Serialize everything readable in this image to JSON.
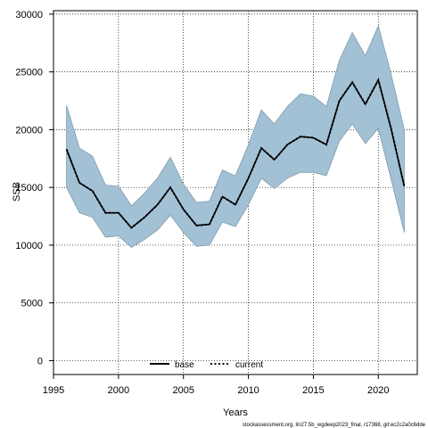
{
  "chart_data": {
    "type": "area",
    "xlabel": "Years",
    "ylabel": "SSB",
    "xlim": [
      1995,
      2023
    ],
    "ylim": [
      -1200,
      30300
    ],
    "x_ticks": [
      1995,
      2000,
      2005,
      2010,
      2015,
      2020
    ],
    "y_ticks": [
      0,
      5000,
      10000,
      15000,
      20000,
      25000,
      30000
    ],
    "grid": true,
    "legend_placement": "bottom-center",
    "x": [
      1996,
      1997,
      1998,
      1999,
      2000,
      2001,
      2002,
      2003,
      2004,
      2005,
      2006,
      2007,
      2008,
      2009,
      2010,
      2011,
      2012,
      2013,
      2014,
      2015,
      2016,
      2017,
      2018,
      2019,
      2020,
      2021,
      2022
    ],
    "series": [
      {
        "name": "current",
        "style": "dotted",
        "color": "#000000",
        "values": [
          18300,
          15400,
          14700,
          12800,
          12800,
          11500,
          12400,
          13500,
          15000,
          13100,
          11700,
          11800,
          14200,
          13500,
          15800,
          18400,
          17400,
          18700,
          19400,
          19300,
          18700,
          22500,
          24100,
          22200,
          24300,
          20000,
          15100
        ]
      },
      {
        "name": "base",
        "style": "solid",
        "color": "#000000",
        "values": [
          18300,
          15400,
          14700,
          12800,
          12800,
          11500,
          12400,
          13500,
          15000,
          13100,
          11700,
          11800,
          14200,
          13500,
          15800,
          18400,
          17400,
          18700,
          19400,
          19300,
          18700,
          22500,
          24100,
          22200,
          24300,
          20000,
          15100
        ]
      }
    ],
    "confidence_band": {
      "upper": [
        22100,
        18400,
        17700,
        15200,
        15100,
        13400,
        14500,
        15800,
        17600,
        15300,
        13700,
        13800,
        16500,
        16000,
        18700,
        21700,
        20500,
        22000,
        23100,
        22900,
        22000,
        26000,
        28400,
        26400,
        29000,
        24700,
        20000
      ],
      "lower": [
        15000,
        12800,
        12400,
        10700,
        10800,
        9800,
        10500,
        11300,
        12600,
        11100,
        9900,
        10000,
        12000,
        11600,
        13500,
        15800,
        14900,
        15800,
        16300,
        16300,
        16000,
        19000,
        20500,
        18800,
        20100,
        15600,
        11100
      ],
      "fill_color": "#a3c1d5",
      "edge_color": "#7e9aab"
    },
    "footer": "stockassessment.org, lin27.5b_wgdeep2023_final, r17368, git:ec2c2a0c6dde"
  }
}
